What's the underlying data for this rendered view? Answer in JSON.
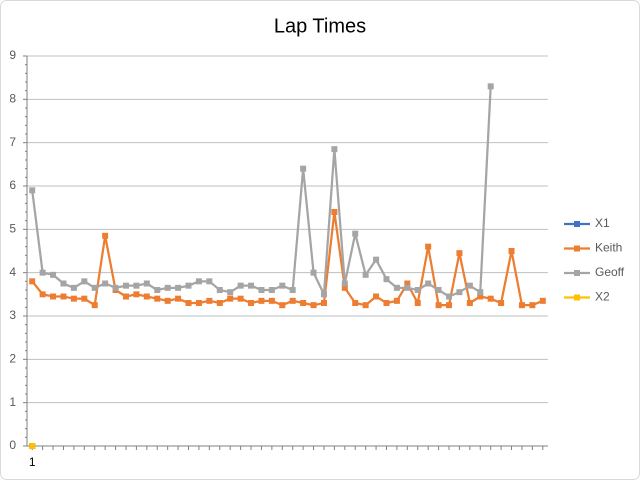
{
  "chart_data": {
    "type": "line",
    "title": "Lap Times",
    "categories": [
      "1",
      null,
      null,
      null,
      null,
      null,
      null,
      null,
      null,
      null,
      null,
      null,
      null,
      null,
      null,
      null,
      null,
      null,
      null,
      null,
      null,
      null,
      null,
      null,
      null,
      null,
      null,
      null,
      null,
      null,
      null,
      null,
      null,
      null,
      null,
      null,
      null,
      null,
      null,
      null,
      null,
      null,
      null,
      null,
      null,
      null,
      null,
      null,
      null,
      null
    ],
    "series": [
      {
        "name": "X1",
        "color": "#4472c4",
        "values": [
          0,
          null,
          null,
          null,
          null,
          null,
          null,
          null,
          null,
          null,
          null,
          null,
          null,
          null,
          null,
          null,
          null,
          null,
          null,
          null,
          null,
          null,
          null,
          null,
          null,
          null,
          null,
          null,
          null,
          null,
          null,
          null,
          null,
          null,
          null,
          null,
          null,
          null,
          null,
          null,
          null,
          null,
          null,
          null,
          null,
          null,
          null,
          null,
          null,
          null
        ]
      },
      {
        "name": "Keith",
        "color": "#ed7d31",
        "values": [
          3.8,
          3.5,
          3.45,
          3.45,
          3.4,
          3.4,
          3.25,
          4.85,
          3.6,
          3.45,
          3.5,
          3.45,
          3.4,
          3.35,
          3.4,
          3.3,
          3.3,
          3.35,
          3.3,
          3.4,
          3.4,
          3.3,
          3.35,
          3.35,
          3.25,
          3.35,
          3.3,
          3.25,
          3.3,
          5.4,
          3.65,
          3.3,
          3.25,
          3.45,
          3.3,
          3.35,
          3.75,
          3.3,
          4.6,
          3.25,
          3.25,
          4.45,
          3.3,
          3.45,
          3.4,
          3.3,
          4.5,
          3.25,
          3.25,
          3.35
        ]
      },
      {
        "name": "Geoff",
        "color": "#a5a5a5",
        "values": [
          5.9,
          4.0,
          3.95,
          3.75,
          3.65,
          3.8,
          3.65,
          3.75,
          3.65,
          3.7,
          3.7,
          3.75,
          3.6,
          3.65,
          3.65,
          3.7,
          3.8,
          3.8,
          3.6,
          3.55,
          3.7,
          3.7,
          3.6,
          3.6,
          3.7,
          3.6,
          6.4,
          4.0,
          3.5,
          6.85,
          3.75,
          4.9,
          3.95,
          4.3,
          3.85,
          3.65,
          3.65,
          3.6,
          3.75,
          3.6,
          3.45,
          3.55,
          3.7,
          3.55,
          8.3,
          null,
          null,
          null,
          null,
          null
        ]
      },
      {
        "name": "X2",
        "color": "#ffc000",
        "values": [
          0,
          null,
          null,
          null,
          null,
          null,
          null,
          null,
          null,
          null,
          null,
          null,
          null,
          null,
          null,
          null,
          null,
          null,
          null,
          null,
          null,
          null,
          null,
          null,
          null,
          null,
          null,
          null,
          null,
          null,
          null,
          null,
          null,
          null,
          null,
          null,
          null,
          null,
          null,
          null,
          null,
          null,
          null,
          null,
          null,
          null,
          null,
          null,
          null,
          null
        ]
      }
    ],
    "ylim": [
      0,
      9
    ],
    "yticks": [
      0,
      1,
      2,
      3,
      4,
      5,
      6,
      7,
      8,
      9
    ],
    "grid": true,
    "legend": "right"
  }
}
